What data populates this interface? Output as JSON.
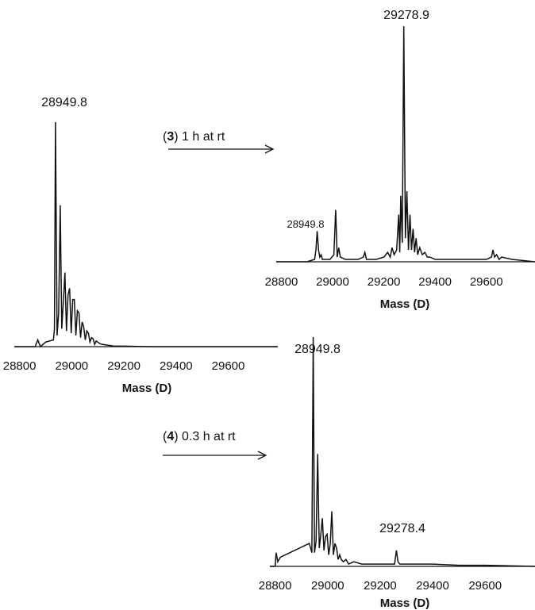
{
  "chart_data": [
    {
      "id": "start",
      "type": "line",
      "xlabel": "Mass (D)",
      "xlim": [
        28780,
        29790
      ],
      "ylim": [
        0,
        1.0
      ],
      "xticks": [
        28800,
        29000,
        29200,
        29400,
        29600
      ],
      "series": [
        {
          "x": [
            28780,
            28860,
            28870,
            28880,
            28900,
            28930,
            28934,
            28938,
            28944,
            28950,
            28956,
            28962,
            28968,
            28974,
            28980,
            28986,
            28992,
            28998,
            29004,
            29010,
            29016,
            29022,
            29028,
            29034,
            29040,
            29046,
            29052,
            29058,
            29064,
            29070,
            29076,
            29082,
            29088,
            29094,
            29100,
            29110,
            29120,
            29140,
            29160,
            29200,
            29300,
            29790
          ],
          "y": [
            0.0,
            0.0,
            0.03,
            0.0,
            0.02,
            0.03,
            0.08,
            1.0,
            0.05,
            0.15,
            0.63,
            0.08,
            0.2,
            0.33,
            0.07,
            0.23,
            0.26,
            0.06,
            0.21,
            0.21,
            0.05,
            0.16,
            0.15,
            0.04,
            0.11,
            0.09,
            0.03,
            0.07,
            0.06,
            0.02,
            0.04,
            0.035,
            0.01,
            0.025,
            0.02,
            0.012,
            0.01,
            0.006,
            0.003,
            0.002,
            0.0,
            0.0
          ]
        }
      ],
      "annotations": [
        {
          "text": "28949.8",
          "x": 28938,
          "y": 1.0
        }
      ]
    },
    {
      "id": "product3",
      "type": "line",
      "xlabel": "Mass (D)",
      "xlim": [
        28780,
        29790
      ],
      "ylim": [
        0,
        1.0
      ],
      "xticks": [
        28800,
        29000,
        29200,
        29400,
        29600
      ],
      "series": [
        {
          "x": [
            28780,
            28900,
            28930,
            28935,
            28940,
            28945,
            28950,
            28955,
            28960,
            28990,
            29005,
            29012,
            29018,
            29024,
            29030,
            29050,
            29100,
            29120,
            29126,
            29132,
            29170,
            29200,
            29215,
            29225,
            29232,
            29240,
            29250,
            29258,
            29262,
            29266,
            29272,
            29278,
            29284,
            29290,
            29296,
            29302,
            29308,
            29314,
            29320,
            29326,
            29332,
            29340,
            29350,
            29360,
            29370,
            29380,
            29400,
            29450,
            29500,
            29560,
            29600,
            29620,
            29626,
            29632,
            29640,
            29650,
            29660,
            29700,
            29790
          ],
          "y": [
            0.0,
            0.0,
            0.01,
            0.05,
            0.13,
            0.05,
            0.02,
            0.03,
            0.01,
            0.01,
            0.03,
            0.22,
            0.02,
            0.06,
            0.02,
            0.01,
            0.01,
            0.02,
            0.04,
            0.01,
            0.01,
            0.02,
            0.04,
            0.02,
            0.06,
            0.03,
            0.05,
            0.2,
            0.04,
            0.28,
            0.08,
            1.0,
            0.1,
            0.3,
            0.05,
            0.2,
            0.05,
            0.14,
            0.04,
            0.1,
            0.03,
            0.06,
            0.03,
            0.04,
            0.02,
            0.02,
            0.01,
            0.01,
            0.01,
            0.01,
            0.01,
            0.02,
            0.05,
            0.02,
            0.03,
            0.01,
            0.02,
            0.01,
            0.0
          ]
        }
      ],
      "annotations": [
        {
          "text": "29278.9",
          "x": 29278,
          "y": 1.0
        },
        {
          "text": "28949.8",
          "x": 28940,
          "y": 0.13,
          "size": "small"
        }
      ]
    },
    {
      "id": "product4",
      "type": "line",
      "xlabel": "Mass (D)",
      "xlim": [
        28780,
        29790
      ],
      "ylim": [
        0,
        1.0
      ],
      "xticks": [
        28800,
        29000,
        29200,
        29400,
        29600
      ],
      "series": [
        {
          "x": [
            28780,
            28800,
            28804,
            28810,
            28820,
            28930,
            28940,
            28945,
            28950,
            28956,
            28962,
            28968,
            28974,
            28980,
            28986,
            28992,
            28998,
            29004,
            29010,
            29016,
            29022,
            29028,
            29034,
            29040,
            29046,
            29052,
            29060,
            29070,
            29080,
            29100,
            29130,
            29160,
            29200,
            29255,
            29262,
            29268,
            29275,
            29300,
            29400,
            29500,
            29600,
            29790
          ],
          "y": [
            0.0,
            0.0,
            0.06,
            0.02,
            0.04,
            0.1,
            0.06,
            1.0,
            0.06,
            0.11,
            0.49,
            0.08,
            0.14,
            0.21,
            0.07,
            0.13,
            0.14,
            0.05,
            0.1,
            0.24,
            0.05,
            0.1,
            0.08,
            0.03,
            0.05,
            0.03,
            0.02,
            0.03,
            0.01,
            0.02,
            0.01,
            0.01,
            0.01,
            0.01,
            0.07,
            0.02,
            0.01,
            0.01,
            0.01,
            0.005,
            0.005,
            0.0
          ]
        }
      ],
      "annotations": [
        {
          "text": "28949.8",
          "x": 28945,
          "y": 1.0
        },
        {
          "text": "29278.4",
          "x": 29268,
          "y": 0.09
        }
      ]
    }
  ],
  "steps": [
    {
      "num": "(3)",
      "num_text": "3",
      "text": "1 h at rt"
    },
    {
      "num": "(4)",
      "num_text": "4",
      "text": "0.3 h at rt"
    }
  ]
}
